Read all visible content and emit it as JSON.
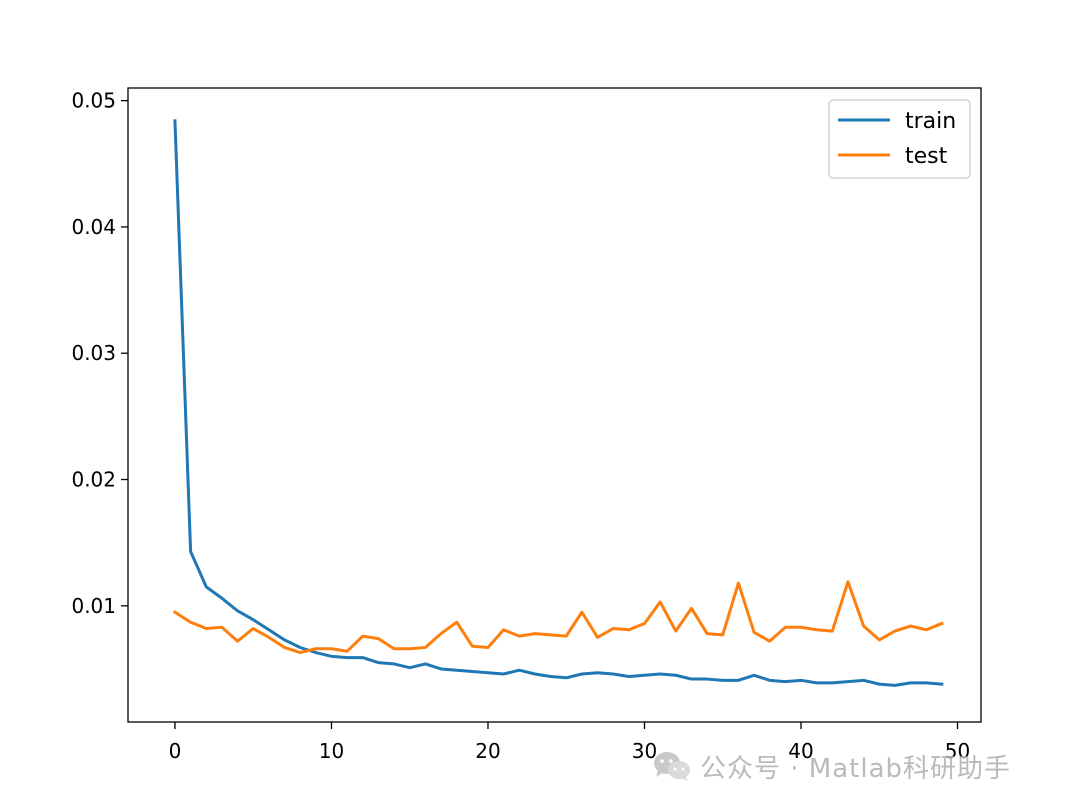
{
  "chart_data": {
    "type": "line",
    "x": [
      0,
      1,
      2,
      3,
      4,
      5,
      6,
      7,
      8,
      9,
      10,
      11,
      12,
      13,
      14,
      15,
      16,
      17,
      18,
      19,
      20,
      21,
      22,
      23,
      24,
      25,
      26,
      27,
      28,
      29,
      30,
      31,
      32,
      33,
      34,
      35,
      36,
      37,
      38,
      39,
      40,
      41,
      42,
      43,
      44,
      45,
      46,
      47,
      48,
      49
    ],
    "series": [
      {
        "name": "train",
        "color": "#1f77b4",
        "values": [
          0.0484,
          0.0143,
          0.0115,
          0.0106,
          0.0096,
          0.0089,
          0.0081,
          0.0073,
          0.0067,
          0.0063,
          0.006,
          0.0059,
          0.0059,
          0.0055,
          0.0054,
          0.0051,
          0.0054,
          0.005,
          0.0049,
          0.0048,
          0.0047,
          0.0046,
          0.0049,
          0.0046,
          0.0044,
          0.0043,
          0.0046,
          0.0047,
          0.0046,
          0.0044,
          0.0045,
          0.0046,
          0.0045,
          0.0042,
          0.0042,
          0.0041,
          0.0041,
          0.0045,
          0.0041,
          0.004,
          0.0041,
          0.0039,
          0.0039,
          0.004,
          0.0041,
          0.0038,
          0.0037,
          0.0039,
          0.0039,
          0.0038
        ]
      },
      {
        "name": "test",
        "color": "#ff7f0e",
        "values": [
          0.0095,
          0.0087,
          0.0082,
          0.0083,
          0.0072,
          0.0082,
          0.0075,
          0.0067,
          0.0063,
          0.0066,
          0.0066,
          0.0064,
          0.0076,
          0.0074,
          0.0066,
          0.0066,
          0.0067,
          0.0078,
          0.0087,
          0.0068,
          0.0067,
          0.0081,
          0.0076,
          0.0078,
          0.0077,
          0.0076,
          0.0095,
          0.0075,
          0.0082,
          0.0081,
          0.0086,
          0.0103,
          0.008,
          0.0098,
          0.0078,
          0.0077,
          0.0118,
          0.0079,
          0.0072,
          0.0083,
          0.0083,
          0.0081,
          0.008,
          0.0119,
          0.0084,
          0.0073,
          0.008,
          0.0084,
          0.0081,
          0.0086
        ]
      }
    ],
    "xticks": [
      0,
      10,
      20,
      30,
      40,
      50
    ],
    "xtick_labels": [
      "0",
      "10",
      "20",
      "30",
      "40",
      "50"
    ],
    "yticks": [
      0.01,
      0.02,
      0.03,
      0.04,
      0.05
    ],
    "ytick_labels": [
      "0.01",
      "0.02",
      "0.03",
      "0.04",
      "0.05"
    ],
    "xlim": [
      -3,
      51.5
    ],
    "ylim": [
      0.0008,
      0.051
    ],
    "title": "",
    "xlabel": "",
    "ylabel": "",
    "grid": false,
    "legend_position": "top-right"
  },
  "watermark": {
    "icon": "wechat-icon",
    "text": "公众号 · Matlab科研助手"
  }
}
